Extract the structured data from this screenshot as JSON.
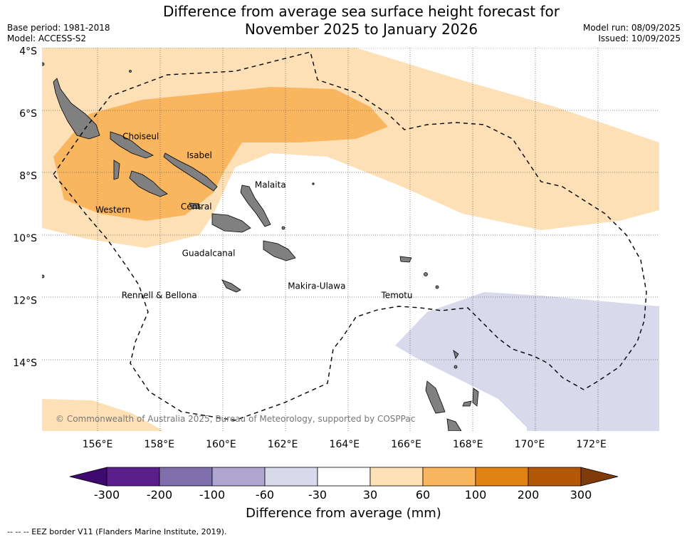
{
  "header": {
    "title_line1": "Difference from average sea surface height forecast for",
    "title_line2": "November 2025 to January 2026",
    "base_period": "Base period: 1981-2018",
    "model": "Model: ACCESS-S2",
    "model_run": "Model run: 08/09/2025",
    "issued": "Issued: 10/09/2025"
  },
  "map": {
    "lat_labels": [
      {
        "lat": -4,
        "text": "4°S"
      },
      {
        "lat": -6,
        "text": "6°S"
      },
      {
        "lat": -8,
        "text": "8°S"
      },
      {
        "lat": -10,
        "text": "10°S"
      },
      {
        "lat": -12,
        "text": "12°S"
      },
      {
        "lat": -14,
        "text": "14°S"
      }
    ],
    "lon_labels": [
      {
        "lon": 156,
        "text": "156°E"
      },
      {
        "lon": 158,
        "text": "158°E"
      },
      {
        "lon": 160,
        "text": "160°E"
      },
      {
        "lon": 162,
        "text": "162°E"
      },
      {
        "lon": 164,
        "text": "164°E"
      },
      {
        "lon": 166,
        "text": "166°E"
      },
      {
        "lon": 168,
        "text": "168°E"
      },
      {
        "lon": 170,
        "text": "170°E"
      },
      {
        "lon": 172,
        "text": "172°E"
      }
    ],
    "lon_range": [
      154.2,
      174.2
    ],
    "lat_range": [
      -16.2,
      -3.9
    ],
    "grid": true,
    "province_labels": [
      {
        "name": "Choiseul",
        "lon": 157.4,
        "lat": -6.75
      },
      {
        "name": "Isabel",
        "lon": 159.3,
        "lat": -7.35
      },
      {
        "name": "Malaita",
        "lon": 161.6,
        "lat": -8.3
      },
      {
        "name": "Western",
        "lon": 156.5,
        "lat": -9.1
      },
      {
        "name": "Central",
        "lon": 159.2,
        "lat": -9.0
      },
      {
        "name": "Guadalcanal",
        "lon": 159.6,
        "lat": -10.5
      },
      {
        "name": "Makira-Ulawa",
        "lon": 163.1,
        "lat": -11.55
      },
      {
        "name": "Rennell & Bellona",
        "lon": 158.0,
        "lat": -11.85
      },
      {
        "name": "Temotu",
        "lon": 165.7,
        "lat": -11.85
      }
    ],
    "copyright": "© Commonwealth of Australia 2025, Bureau of Meteorology, supported by COSPPac",
    "ocean_color": "#ffffff",
    "land_color": "#808080"
  },
  "colorbar": {
    "ticks": [
      "-300",
      "-200",
      "-100",
      "-60",
      "-30",
      "30",
      "60",
      "100",
      "200",
      "300"
    ],
    "colors": [
      "#3f0a6f",
      "#5a1f8b",
      "#7f6fad",
      "#aea6d0",
      "#d8d9eb",
      "#ffffff",
      "#fee0b7",
      "#f9b65f",
      "#e08214",
      "#b35806",
      "#7f3b08"
    ],
    "label": "Difference from average (mm)"
  },
  "footer": {
    "eez_note": "--  --  -- EEZ border V11 (Flanders Marine Institute, 2019)."
  }
}
